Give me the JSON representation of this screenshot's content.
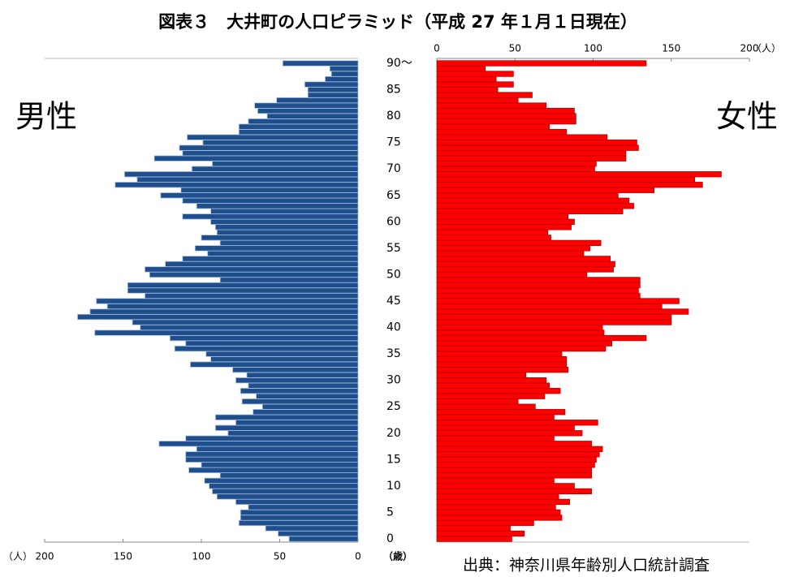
{
  "chart_data": {
    "type": "pyramid",
    "title": "図表３　大井町の人口ピラミッド（平成 27 年１月１日現在）",
    "source": "出典：神奈川県年齢別人口統計調査",
    "x_unit": "（人）",
    "age_unit": "（歳）",
    "categories": [
      "0",
      null,
      null,
      null,
      null,
      "5",
      null,
      null,
      null,
      null,
      "10",
      null,
      null,
      null,
      null,
      "15",
      null,
      null,
      null,
      null,
      "20",
      null,
      null,
      null,
      null,
      "25",
      null,
      null,
      null,
      null,
      "30",
      null,
      null,
      null,
      null,
      "35",
      null,
      null,
      null,
      null,
      "40",
      null,
      null,
      null,
      null,
      "45",
      null,
      null,
      null,
      null,
      "50",
      null,
      null,
      null,
      null,
      "55",
      null,
      null,
      null,
      null,
      "60",
      null,
      null,
      null,
      null,
      "65",
      null,
      null,
      null,
      null,
      "70",
      null,
      null,
      null,
      null,
      "75",
      null,
      null,
      null,
      null,
      "80",
      null,
      null,
      null,
      null,
      "85",
      null,
      null,
      null,
      null,
      "90～"
    ],
    "xlim": [
      0,
      200
    ],
    "xticks": [
      0,
      50,
      100,
      150,
      200
    ],
    "series": [
      {
        "name": "男性",
        "color": "#1f4e8c",
        "side": "left",
        "values": [
          44,
          51,
          59,
          76,
          75,
          75,
          70,
          78,
          90,
          93,
          95,
          98,
          88,
          108,
          100,
          110,
          110,
          103,
          127,
          110,
          83,
          91,
          78,
          91,
          67,
          61,
          74,
          65,
          75,
          70,
          78,
          71,
          80,
          107,
          94,
          97,
          117,
          110,
          120,
          168,
          139,
          144,
          179,
          171,
          160,
          167,
          136,
          147,
          147,
          88,
          133,
          136,
          123,
          112,
          96,
          104,
          88,
          100,
          90,
          91,
          94,
          112,
          94,
          103,
          112,
          126,
          113,
          155,
          141,
          149,
          106,
          93,
          130,
          112,
          114,
          99,
          109,
          76,
          76,
          70,
          58,
          64,
          66,
          52,
          32,
          32,
          34,
          21,
          17,
          18,
          48
        ]
      },
      {
        "name": "女性",
        "color": "#ff0000",
        "side": "right",
        "values": [
          48,
          56,
          47,
          62,
          80,
          79,
          76,
          85,
          78,
          99,
          88,
          75,
          99,
          99,
          101,
          102,
          104,
          106,
          99,
          75,
          93,
          88,
          103,
          75,
          82,
          63,
          52,
          69,
          79,
          72,
          70,
          57,
          84,
          83,
          83,
          80,
          108,
          112,
          134,
          107,
          106,
          150,
          150,
          161,
          144,
          155,
          130,
          129,
          130,
          130,
          96,
          113,
          114,
          111,
          94,
          98,
          105,
          73,
          71,
          86,
          88,
          84,
          119,
          126,
          123,
          116,
          139,
          170,
          165,
          182,
          101,
          102,
          121,
          121,
          129,
          128,
          109,
          83,
          72,
          89,
          89,
          88,
          70,
          52,
          61,
          39,
          49,
          38,
          49,
          31,
          134
        ]
      }
    ]
  }
}
